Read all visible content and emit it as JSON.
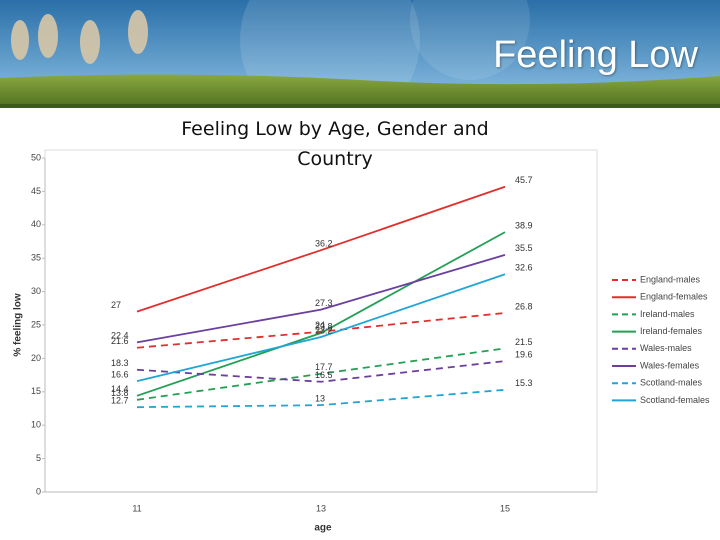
{
  "header": {
    "title": "Feeling Low"
  },
  "chart_data": {
    "type": "line",
    "title": "Feeling Low by Age, Gender and Country",
    "xlabel": "age",
    "ylabel": "% feeling low",
    "categories": [
      "11",
      "13",
      "15"
    ],
    "ylim": [
      0,
      50
    ],
    "yticks": [
      0,
      5,
      10,
      15,
      20,
      25,
      30,
      35,
      40,
      45,
      50
    ],
    "grid": false,
    "legend": "right",
    "series": [
      {
        "name": "England-males",
        "color": "#e0302e",
        "style": "dashed",
        "values": [
          21.6,
          24,
          26.8
        ]
      },
      {
        "name": "England-females",
        "color": "#e0302e",
        "style": "solid",
        "values": [
          27,
          36.2,
          45.7
        ]
      },
      {
        "name": "Ireland-males",
        "color": "#23a055",
        "style": "dashed",
        "values": [
          13.8,
          17.7,
          21.5
        ]
      },
      {
        "name": "Ireland-females",
        "color": "#23a055",
        "style": "solid",
        "values": [
          14.4,
          23.8,
          38.9
        ]
      },
      {
        "name": "Wales-males",
        "color": "#6a3f9e",
        "style": "dashed",
        "values": [
          18.3,
          16.5,
          19.6
        ]
      },
      {
        "name": "Wales-females",
        "color": "#6a3f9e",
        "style": "solid",
        "values": [
          22.4,
          27.3,
          35.5
        ]
      },
      {
        "name": "Scotland-males",
        "color": "#1fa6d6",
        "style": "dashed",
        "values": [
          12.7,
          13,
          15.3
        ]
      },
      {
        "name": "Scotland-females",
        "color": "#1fa6d6",
        "style": "solid",
        "values": [
          16.6,
          23.2,
          32.6
        ]
      }
    ]
  }
}
